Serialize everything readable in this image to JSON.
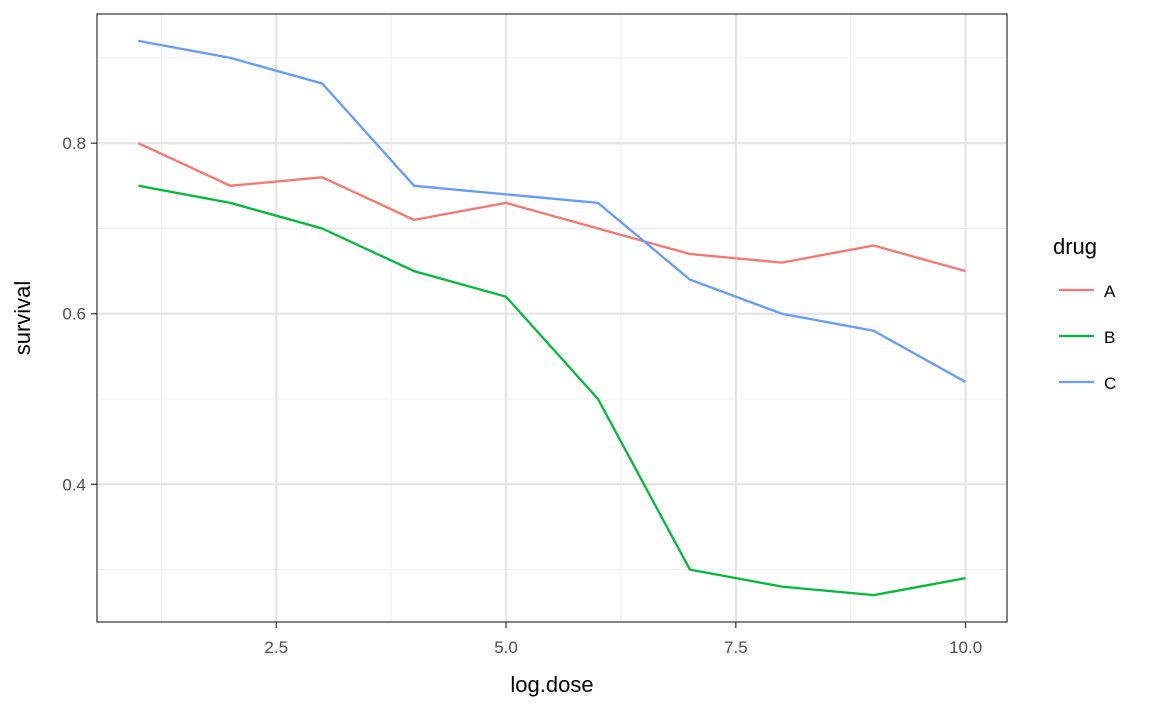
{
  "chart_data": {
    "type": "line",
    "title": "",
    "xlabel": "log.dose",
    "ylabel": "survival",
    "xlim": [
      0.55,
      10.45
    ],
    "ylim": [
      0.2385,
      0.9515
    ],
    "x_ticks": [
      2.5,
      5.0,
      7.5,
      10.0
    ],
    "x_tick_labels": [
      "2.5",
      "5.0",
      "7.5",
      "10.0"
    ],
    "y_ticks": [
      0.4,
      0.6,
      0.8
    ],
    "y_tick_labels": [
      "0.4",
      "0.6",
      "0.8"
    ],
    "grid": true,
    "legend": {
      "title": "drug",
      "placement": "right"
    },
    "x": [
      1,
      2,
      3,
      4,
      5,
      6,
      7,
      8,
      9,
      10
    ],
    "series": [
      {
        "name": "A",
        "color": "#F8766D",
        "values": [
          0.8,
          0.75,
          0.76,
          0.71,
          0.73,
          0.7,
          0.67,
          0.66,
          0.68,
          0.65
        ]
      },
      {
        "name": "B",
        "color": "#00BA38",
        "values": [
          0.75,
          0.73,
          0.7,
          0.65,
          0.62,
          0.5,
          0.3,
          0.28,
          0.27,
          0.29
        ]
      },
      {
        "name": "C",
        "color": "#619CFF",
        "values": [
          0.92,
          0.9,
          0.87,
          0.75,
          0.74,
          0.73,
          0.64,
          0.6,
          0.58,
          0.52
        ]
      }
    ]
  }
}
